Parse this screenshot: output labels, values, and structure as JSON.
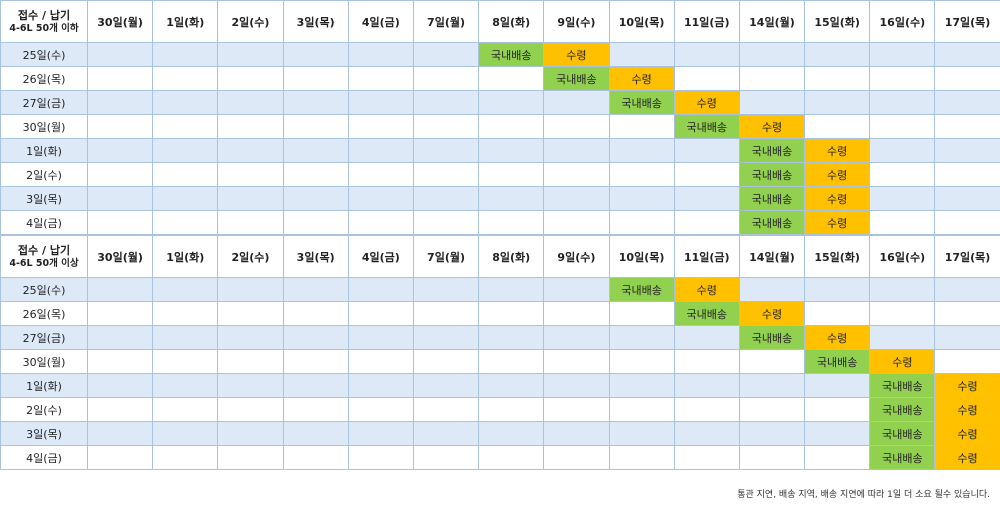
{
  "columns": [
    "30일(월)",
    "1일(화)",
    "2일(수)",
    "3일(목)",
    "4일(금)",
    "7일(월)",
    "8일(화)",
    "9일(수)",
    "10일(목)",
    "11일(금)",
    "14일(월)",
    "15일(화)",
    "16일(수)",
    "17일(목)"
  ],
  "legend": {
    "domestic": "국내배송",
    "receive": "수령"
  },
  "colors": {
    "domestic": "#92d050",
    "receive": "#ffc000",
    "stripe": "#dde9f6",
    "border": "#a9c3de"
  },
  "tables": [
    {
      "header_line1": "접수 / 납기",
      "header_line2": "4-6L 50개 이하",
      "rows": [
        {
          "label": "25일(수)",
          "ship": 6,
          "recv": 7
        },
        {
          "label": "26일(목)",
          "ship": 7,
          "recv": 8
        },
        {
          "label": "27일(금)",
          "ship": 8,
          "recv": 9
        },
        {
          "label": "30일(월)",
          "ship": 9,
          "recv": 10
        },
        {
          "label": "1일(화)",
          "ship": 10,
          "recv": 11
        },
        {
          "label": "2일(수)",
          "ship": 10,
          "recv": 11
        },
        {
          "label": "3일(목)",
          "ship": 10,
          "recv": 11
        },
        {
          "label": "4일(금)",
          "ship": 10,
          "recv": 11
        }
      ]
    },
    {
      "header_line1": "접수 / 납기",
      "header_line2": "4-6L 50개 이상",
      "rows": [
        {
          "label": "25일(수)",
          "ship": 8,
          "recv": 9
        },
        {
          "label": "26일(목)",
          "ship": 9,
          "recv": 10
        },
        {
          "label": "27일(금)",
          "ship": 10,
          "recv": 11
        },
        {
          "label": "30일(월)",
          "ship": 11,
          "recv": 12
        },
        {
          "label": "1일(화)",
          "ship": 12,
          "recv": 13
        },
        {
          "label": "2일(수)",
          "ship": 12,
          "recv": 13
        },
        {
          "label": "3일(목)",
          "ship": 12,
          "recv": 13
        },
        {
          "label": "4일(금)",
          "ship": 12,
          "recv": 13
        }
      ]
    }
  ],
  "footnote": "통관 지연, 배송 지역, 배송 지연에 따라 1일 더 소요 될수 있습니다."
}
